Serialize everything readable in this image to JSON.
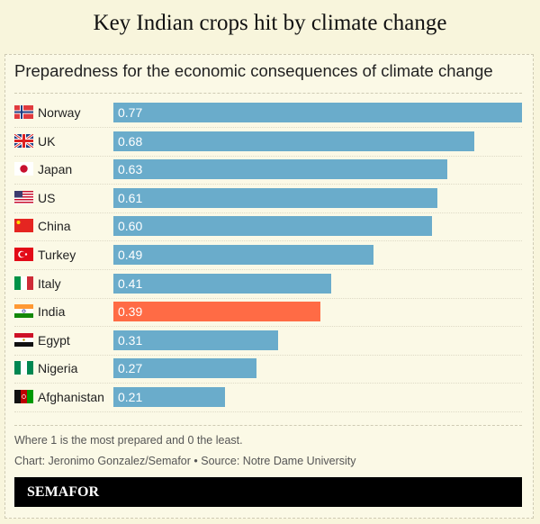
{
  "header": {
    "title": "Key Indian crops hit by climate change"
  },
  "chart_data": {
    "type": "bar",
    "orientation": "horizontal",
    "title": "Preparedness for the economic consequences of climate change",
    "categories": [
      "Norway",
      "UK",
      "Japan",
      "US",
      "China",
      "Turkey",
      "Italy",
      "India",
      "Egypt",
      "Nigeria",
      "Afghanistan"
    ],
    "values": [
      0.77,
      0.68,
      0.63,
      0.61,
      0.6,
      0.49,
      0.41,
      0.39,
      0.31,
      0.27,
      0.21
    ],
    "value_labels": [
      "0.77",
      "0.68",
      "0.63",
      "0.61",
      "0.60",
      "0.49",
      "0.41",
      "0.39",
      "0.31",
      "0.27",
      "0.21"
    ],
    "xlim": [
      0,
      0.77
    ],
    "highlight": "India",
    "colors": {
      "default": "#6aaccb",
      "highlight": "#ff6b45"
    },
    "grid": false
  },
  "footer": {
    "note": "Where 1 is the most prepared and 0 the least.",
    "credit": "Chart: Jeronimo Gonzalez/Semafor • Source: Notre Dame University",
    "logo": "SEMAFOR"
  }
}
